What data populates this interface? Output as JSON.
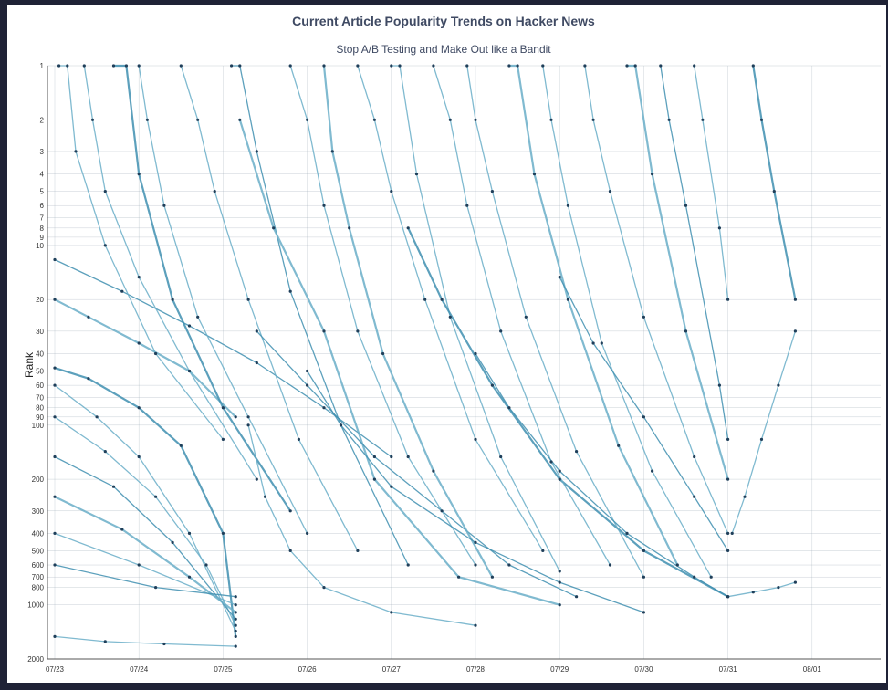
{
  "colors": {
    "backdrop": "#1f2236",
    "panel": "#ffffff",
    "line": "#6aaec8",
    "line_dark": "#3f8fb0",
    "point": "#1f3f5a",
    "grid": "#9aa8b4"
  },
  "chart_data": {
    "type": "line",
    "title": "Current Article Popularity Trends on Hacker News",
    "subtitle": "Stop A/B Testing and Make Out like a Bandit",
    "xlabel": "",
    "ylabel": "Rank",
    "y_scale": "log",
    "y_inverted": true,
    "ylim": [
      1,
      2000
    ],
    "x_ticks": [
      "07/23",
      "07/24",
      "07/25",
      "07/26",
      "07/27",
      "07/28",
      "07/29",
      "07/30",
      "07/31",
      "08/01"
    ],
    "y_ticks": [
      {
        "value": 1,
        "label": "1"
      },
      {
        "value": 2,
        "label": "2"
      },
      {
        "value": 3,
        "label": "3"
      },
      {
        "value": 4,
        "label": "4"
      },
      {
        "value": 5,
        "label": "5"
      },
      {
        "value": 6,
        "label": "6"
      },
      {
        "value": 7,
        "label": "7"
      },
      {
        "value": 8,
        "label": "8"
      },
      {
        "value": 9,
        "label": "9"
      },
      {
        "value": 10,
        "label": "10"
      },
      {
        "value": 20,
        "label": "20"
      },
      {
        "value": 30,
        "label": "30"
      },
      {
        "value": 40,
        "label": "40"
      },
      {
        "value": 50,
        "label": "50"
      },
      {
        "value": 60,
        "label": "60"
      },
      {
        "value": 70,
        "label": "70"
      },
      {
        "value": 80,
        "label": "80"
      },
      {
        "value": 90,
        "label": "90"
      },
      {
        "value": 100,
        "label": "100"
      },
      {
        "value": 200,
        "label": "200"
      },
      {
        "value": 300,
        "label": "300"
      },
      {
        "value": 400,
        "label": "400"
      },
      {
        "value": 500,
        "label": "500"
      },
      {
        "value": 600,
        "label": "600"
      },
      {
        "value": 700,
        "label": "700"
      },
      {
        "value": 800,
        "label": "800"
      },
      {
        "value": 1000,
        "label": "1000"
      },
      {
        "value": 2000,
        "label": "2000"
      }
    ],
    "grid": true,
    "legend": "none",
    "series": [
      {
        "x": [
          0.0,
          0.4,
          1.0,
          1.5,
          2.0,
          2.15
        ],
        "y": [
          48,
          55,
          80,
          130,
          400,
          1500
        ]
      },
      {
        "x": [
          0.0,
          0.5,
          1.0,
          1.6,
          2.15
        ],
        "y": [
          60,
          90,
          150,
          400,
          1400
        ]
      },
      {
        "x": [
          0.0,
          0.6,
          1.2,
          1.8,
          2.15
        ],
        "y": [
          90,
          140,
          250,
          600,
          1300
        ]
      },
      {
        "x": [
          0.0,
          0.7,
          1.4,
          2.15
        ],
        "y": [
          150,
          220,
          450,
          1200
        ]
      },
      {
        "x": [
          0.0,
          0.8,
          1.6,
          2.15
        ],
        "y": [
          250,
          380,
          700,
          1100
        ]
      },
      {
        "x": [
          0.0,
          1.0,
          2.15
        ],
        "y": [
          400,
          600,
          1000
        ]
      },
      {
        "x": [
          0.0,
          1.2,
          2.15
        ],
        "y": [
          600,
          800,
          900
        ]
      },
      {
        "x": [
          0.0,
          0.6,
          1.3,
          2.15
        ],
        "y": [
          1500,
          1600,
          1650,
          1700
        ]
      },
      {
        "x": [
          0.0,
          0.4,
          1.0,
          1.6,
          2.15
        ],
        "y": [
          20,
          25,
          35,
          50,
          90
        ]
      },
      {
        "x": [
          0.0,
          0.8,
          1.6,
          2.4,
          3.2,
          4.0
        ],
        "y": [
          12,
          18,
          28,
          45,
          80,
          150
        ]
      },
      {
        "x": [
          0.05,
          0.15,
          0.25,
          0.6,
          1.2,
          2.0
        ],
        "y": [
          1,
          1,
          3,
          10,
          40,
          120
        ]
      },
      {
        "x": [
          0.35,
          0.45,
          0.6,
          1.0,
          1.6,
          2.4
        ],
        "y": [
          1,
          2,
          5,
          15,
          50,
          200
        ]
      },
      {
        "x": [
          0.7,
          0.85,
          1.0,
          1.4,
          2.0,
          2.8
        ],
        "y": [
          1,
          1,
          4,
          20,
          80,
          300
        ]
      },
      {
        "x": [
          1.0,
          1.1,
          1.3,
          1.7,
          2.3,
          3.0
        ],
        "y": [
          1,
          2,
          6,
          25,
          90,
          400
        ]
      },
      {
        "x": [
          1.5,
          1.7,
          1.9,
          2.3,
          2.9,
          3.6
        ],
        "y": [
          1,
          2,
          5,
          20,
          120,
          500
        ]
      },
      {
        "x": [
          2.1,
          2.2,
          2.4,
          2.8,
          3.4,
          4.2
        ],
        "y": [
          1,
          1,
          3,
          18,
          100,
          600
        ]
      },
      {
        "x": [
          2.2,
          2.6,
          3.2,
          3.8,
          4.8,
          6.0
        ],
        "y": [
          2,
          8,
          30,
          200,
          700,
          1000
        ]
      },
      {
        "x": [
          2.3,
          2.5,
          2.8,
          3.2,
          4.0,
          5.0
        ],
        "y": [
          100,
          250,
          500,
          800,
          1100,
          1300
        ]
      },
      {
        "x": [
          2.4,
          3.0,
          3.8,
          4.6,
          5.4,
          6.2
        ],
        "y": [
          30,
          60,
          150,
          300,
          600,
          900
        ]
      },
      {
        "x": [
          2.8,
          3.0,
          3.2,
          3.6,
          4.2,
          5.0
        ],
        "y": [
          1,
          2,
          6,
          30,
          150,
          600
        ]
      },
      {
        "x": [
          3.2,
          3.3,
          3.5,
          3.9,
          4.5,
          5.2
        ],
        "y": [
          1,
          3,
          8,
          40,
          180,
          700
        ]
      },
      {
        "x": [
          3.0,
          3.4,
          4.0,
          5.0,
          6.0,
          7.0
        ],
        "y": [
          50,
          100,
          220,
          450,
          750,
          1100
        ]
      },
      {
        "x": [
          3.6,
          3.8,
          4.0,
          4.4,
          5.0,
          5.8
        ],
        "y": [
          1,
          2,
          5,
          20,
          120,
          500
        ]
      },
      {
        "x": [
          4.0,
          4.1,
          4.3,
          4.7,
          5.3,
          6.0
        ],
        "y": [
          1,
          1,
          4,
          25,
          150,
          650
        ]
      },
      {
        "x": [
          4.2,
          4.6,
          5.2,
          6.0,
          7.0,
          8.0
        ],
        "y": [
          8,
          20,
          60,
          200,
          500,
          900
        ]
      },
      {
        "x": [
          4.5,
          4.7,
          4.9,
          5.3,
          5.9,
          6.6
        ],
        "y": [
          1,
          2,
          6,
          30,
          160,
          600
        ]
      },
      {
        "x": [
          4.9,
          5.0,
          5.2,
          5.6,
          6.2,
          7.0
        ],
        "y": [
          1,
          2,
          5,
          25,
          140,
          700
        ]
      },
      {
        "x": [
          5.0,
          5.4,
          6.0,
          6.8,
          7.6,
          8.0
        ],
        "y": [
          40,
          80,
          180,
          400,
          700,
          900
        ]
      },
      {
        "x": [
          5.4,
          5.5,
          5.7,
          6.1,
          6.7,
          7.4
        ],
        "y": [
          1,
          1,
          4,
          20,
          130,
          600
        ]
      },
      {
        "x": [
          5.8,
          5.9,
          6.1,
          6.5,
          7.1,
          7.8
        ],
        "y": [
          1,
          2,
          6,
          35,
          180,
          700
        ]
      },
      {
        "x": [
          6.0,
          6.4,
          7.0,
          7.6,
          8.0
        ],
        "y": [
          15,
          35,
          90,
          250,
          500
        ]
      },
      {
        "x": [
          6.3,
          6.4,
          6.6,
          7.0,
          7.6,
          8.0
        ],
        "y": [
          1,
          2,
          5,
          25,
          150,
          400
        ]
      },
      {
        "x": [
          6.8,
          6.9,
          7.1,
          7.5,
          8.0
        ],
        "y": [
          1,
          1,
          4,
          30,
          200
        ]
      },
      {
        "x": [
          7.2,
          7.3,
          7.5,
          7.9,
          8.0
        ],
        "y": [
          1,
          2,
          6,
          60,
          120
        ]
      },
      {
        "x": [
          7.6,
          7.7,
          7.9,
          8.0
        ],
        "y": [
          1,
          2,
          8,
          20
        ]
      },
      {
        "x": [
          8.05,
          8.2,
          8.4,
          8.6,
          8.8
        ],
        "y": [
          400,
          250,
          120,
          60,
          30
        ]
      },
      {
        "x": [
          8.3,
          8.4,
          8.55,
          8.8
        ],
        "y": [
          1,
          2,
          5,
          20
        ]
      },
      {
        "x": [
          8.0,
          8.3,
          8.6,
          8.8
        ],
        "y": [
          900,
          850,
          800,
          750
        ]
      }
    ]
  }
}
